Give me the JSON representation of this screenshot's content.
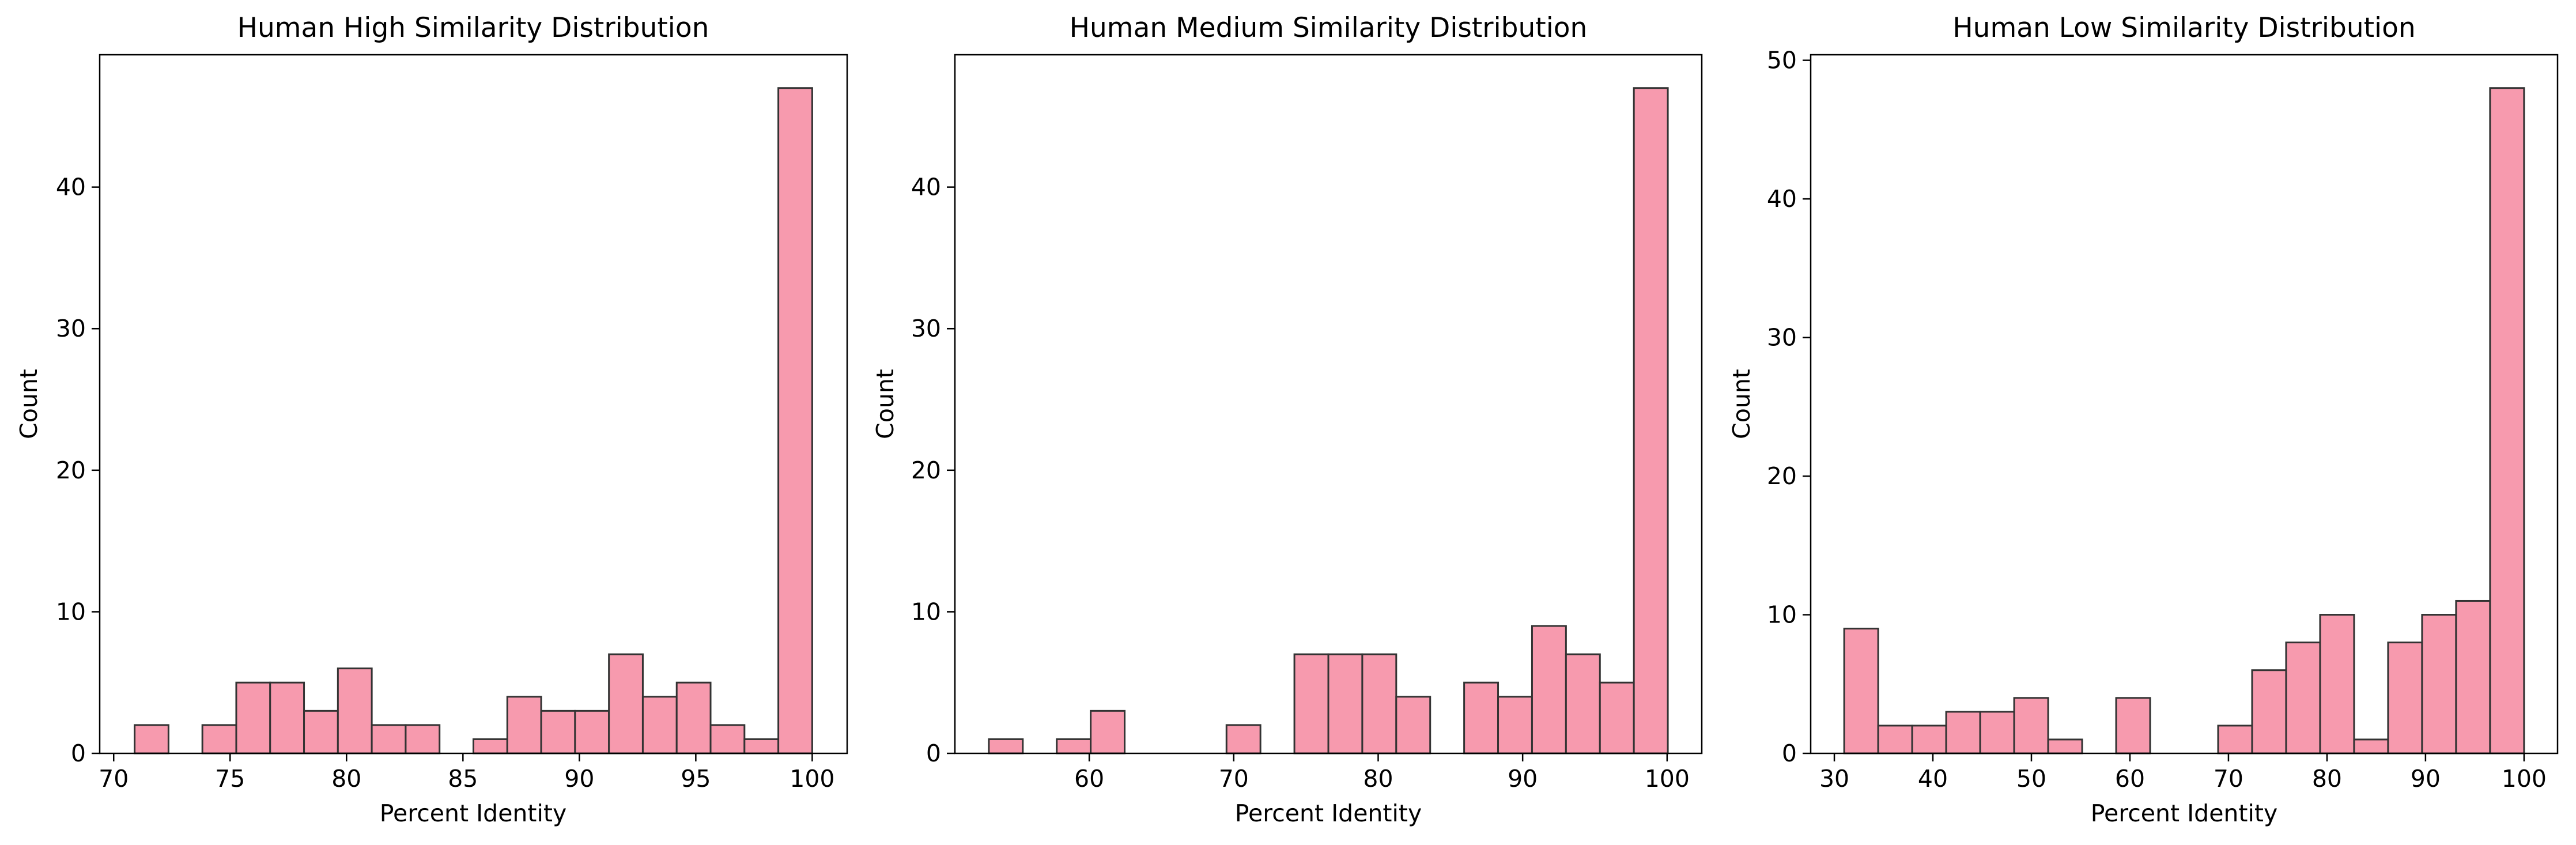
{
  "colors": {
    "bar_fill": "#f79aae",
    "bar_edge": "#333333",
    "axes": "#000000"
  },
  "chart_data": [
    {
      "type": "bar",
      "title": "Human High Similarity Distribution",
      "xlabel": "Percent Identity",
      "ylabel": "Count",
      "xlim": [
        69.4,
        101.5
      ],
      "ylim": [
        0,
        49.35
      ],
      "xticks": [
        70,
        75,
        80,
        85,
        90,
        95,
        100
      ],
      "yticks": [
        0,
        10,
        20,
        30,
        40
      ],
      "bin_start": 70.9,
      "bin_width": 1.455,
      "values": [
        2,
        0,
        2,
        5,
        5,
        3,
        6,
        2,
        2,
        0,
        1,
        4,
        3,
        3,
        7,
        4,
        5,
        2,
        1,
        47
      ],
      "grid": false
    },
    {
      "type": "bar",
      "title": "Human Medium Similarity Distribution",
      "xlabel": "Percent Identity",
      "ylabel": "Count",
      "xlim": [
        50.7,
        102.4
      ],
      "ylim": [
        0,
        49.35
      ],
      "xticks": [
        60,
        70,
        80,
        90,
        100
      ],
      "yticks": [
        0,
        10,
        20,
        30,
        40
      ],
      "bin_start": 53.05,
      "bin_width": 2.35,
      "values": [
        1,
        0,
        1,
        3,
        0,
        0,
        0,
        2,
        0,
        7,
        7,
        7,
        4,
        0,
        5,
        4,
        9,
        7,
        5,
        47
      ],
      "grid": false
    },
    {
      "type": "bar",
      "title": "Human Low Similarity Distribution",
      "xlabel": "Percent Identity",
      "ylabel": "Count",
      "xlim": [
        27.6,
        103.4
      ],
      "ylim": [
        0,
        50.4
      ],
      "xticks": [
        30,
        40,
        50,
        60,
        70,
        80,
        90,
        100
      ],
      "yticks": [
        0,
        10,
        20,
        30,
        40,
        50
      ],
      "bin_start": 31.0,
      "bin_width": 3.45,
      "values": [
        9,
        2,
        2,
        3,
        3,
        4,
        1,
        0,
        4,
        0,
        0,
        2,
        6,
        8,
        10,
        1,
        8,
        10,
        11,
        48
      ],
      "grid": false
    }
  ]
}
